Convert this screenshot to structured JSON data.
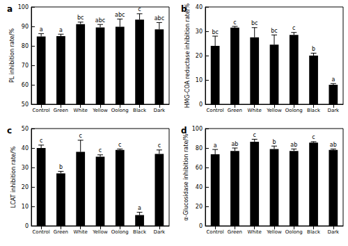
{
  "chart_data": [
    {
      "type": "bar",
      "title": "a",
      "ylabel": "PL inhibition rate/%",
      "categories": [
        "Control",
        "Green",
        "White",
        "Yellow",
        "Oolong",
        "Black",
        "Dark"
      ],
      "values": [
        84.8,
        85.0,
        91.2,
        89.5,
        89.8,
        93.5,
        88.5
      ],
      "errors": [
        1.5,
        1.0,
        1.0,
        1.5,
        4.0,
        3.0,
        3.5
      ],
      "letters": [
        "a",
        "a",
        "bc",
        "abc",
        "abc",
        "c",
        "abc"
      ],
      "color": "#000000",
      "ylim": [
        50,
        100
      ],
      "yticks": [
        50,
        60,
        70,
        80,
        90,
        100
      ],
      "grid": false
    },
    {
      "type": "bar",
      "title": "b",
      "ylabel": "HMG-COA reductase inhibition rate/%",
      "categories": [
        "Control",
        "Green",
        "White",
        "Yellow",
        "Oolong",
        "Black",
        "Dark"
      ],
      "values": [
        24.0,
        31.5,
        27.5,
        24.5,
        28.5,
        20.0,
        8.0
      ],
      "errors": [
        4.0,
        0.5,
        4.0,
        4.0,
        1.0,
        1.0,
        0.5
      ],
      "letters": [
        "bc",
        "c",
        "bc",
        "bc",
        "c",
        "b",
        "a"
      ],
      "color": "#000000",
      "ylim": [
        0,
        40
      ],
      "yticks": [
        0,
        10,
        20,
        30,
        40
      ],
      "grid": false
    },
    {
      "type": "bar",
      "title": "c",
      "ylabel": "LCAT inhibition rate/%",
      "categories": [
        "Control",
        "Green",
        "White",
        "Yellow",
        "Oolong",
        "Black",
        "Dark"
      ],
      "values": [
        40.0,
        27.0,
        38.0,
        35.5,
        39.0,
        5.5,
        37.0
      ],
      "errors": [
        1.5,
        1.0,
        6.0,
        1.0,
        0.5,
        1.5,
        2.0
      ],
      "letters": [
        "c",
        "b",
        "c",
        "c",
        "c",
        "a",
        "c"
      ],
      "color": "#000000",
      "ylim": [
        0,
        50
      ],
      "yticks": [
        0,
        10,
        20,
        30,
        40,
        50
      ],
      "grid": false
    },
    {
      "type": "bar",
      "title": "d",
      "ylabel": "α-Glucosidase inhibition rate/%",
      "categories": [
        "Control",
        "Green",
        "White",
        "Yellow",
        "Oolong",
        "Black",
        "Dark"
      ],
      "values": [
        73.5,
        77.0,
        86.5,
        79.0,
        77.0,
        85.5,
        78.0
      ],
      "errors": [
        5.0,
        3.0,
        2.5,
        3.0,
        2.0,
        1.0,
        1.0
      ],
      "letters": [
        "a",
        "ab",
        "c",
        "b",
        "ab",
        "c",
        "ab"
      ],
      "color": "#000000",
      "ylim": [
        0,
        100
      ],
      "yticks": [
        0,
        20,
        40,
        60,
        80,
        100
      ],
      "grid": false
    }
  ]
}
